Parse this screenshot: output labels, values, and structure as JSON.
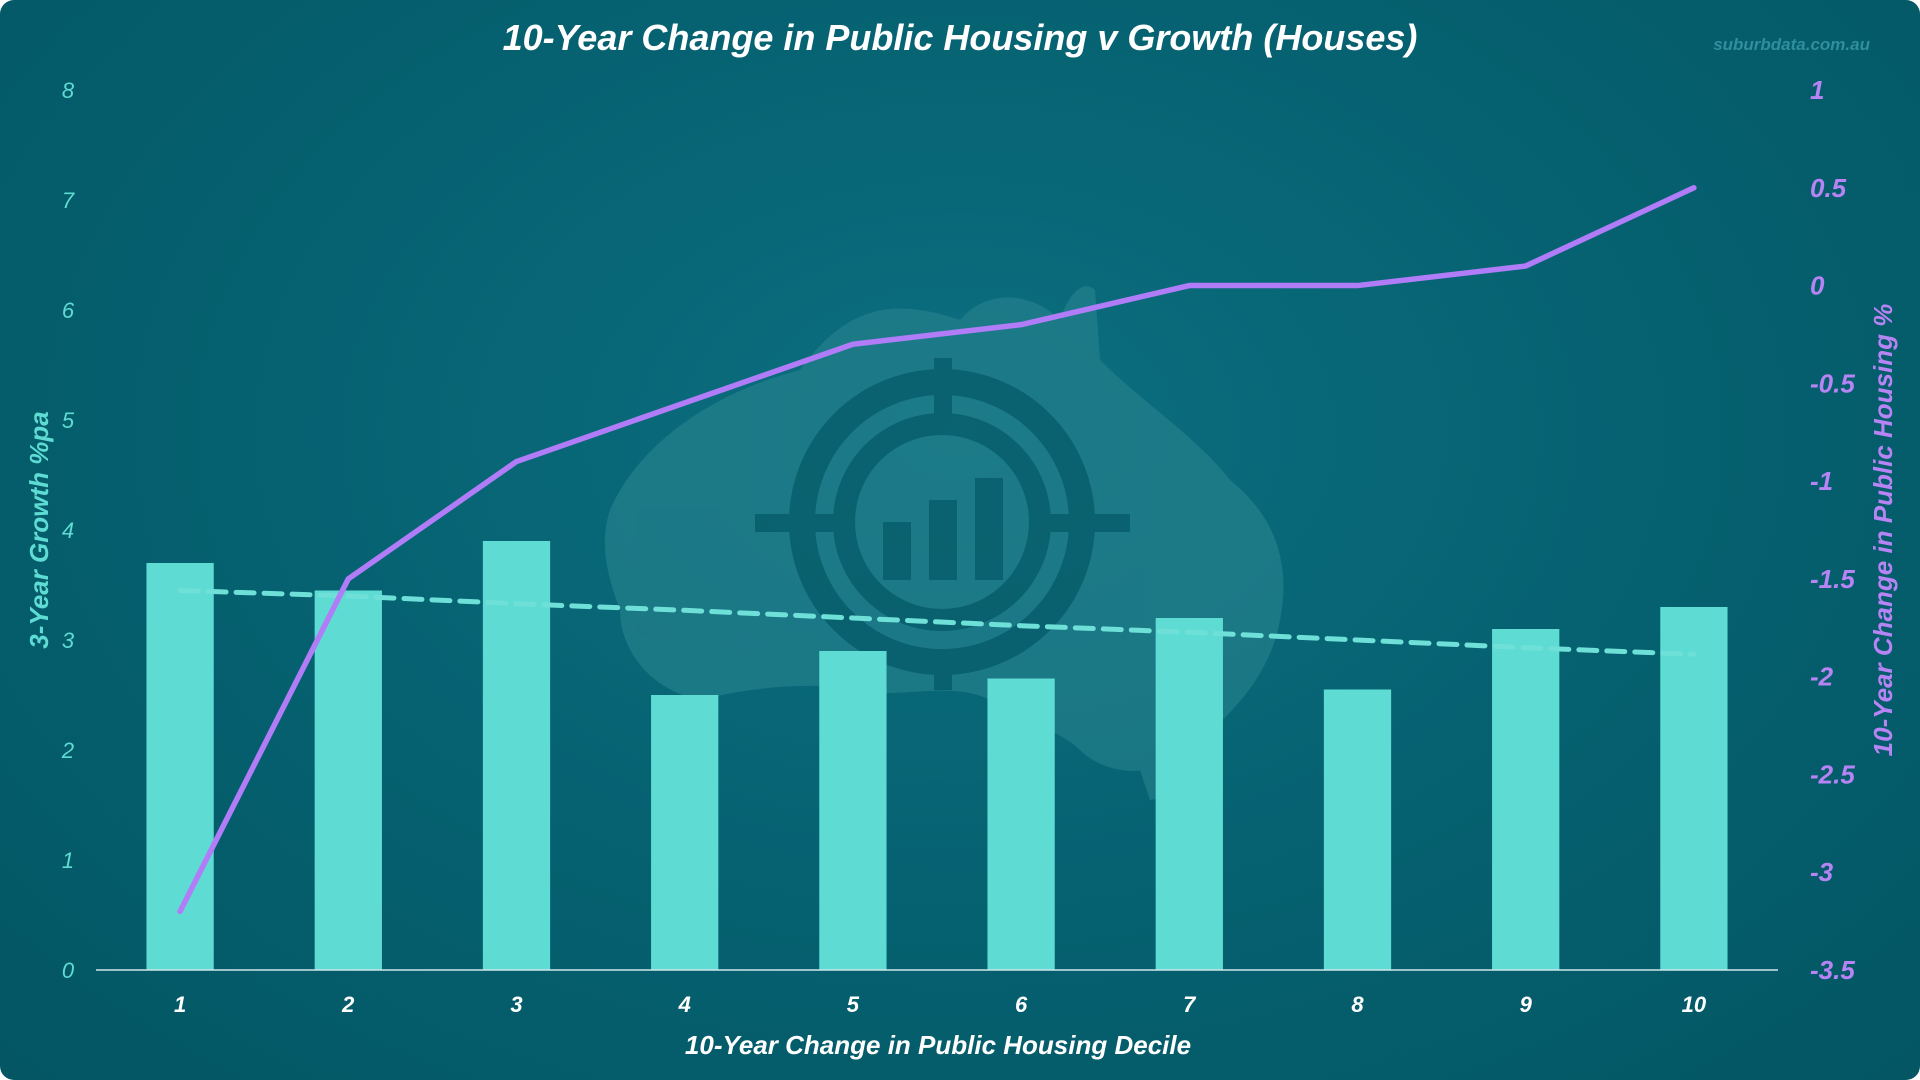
{
  "chart_data": {
    "type": "bar",
    "title": "10-Year Change in Public Housing v Growth (Houses)",
    "watermark": "suburbdata.com.au",
    "categories": [
      "1",
      "2",
      "3",
      "4",
      "5",
      "6",
      "7",
      "8",
      "9",
      "10"
    ],
    "xlabel": "10-Year Change in Public Housing Decile",
    "ylabel": "3-Year Growth %pa",
    "y2label": "10-Year Change in Public Housing %",
    "ylim": [
      0,
      8
    ],
    "y2lim": [
      -3.5,
      1
    ],
    "yticks": [
      "0",
      "1",
      "2",
      "3",
      "4",
      "5",
      "6",
      "7",
      "8"
    ],
    "y2ticks": [
      "-3.5",
      "-3",
      "-2.5",
      "-2",
      "-1.5",
      "-1",
      "-0.5",
      "0",
      "0.5",
      "1"
    ],
    "series": [
      {
        "type": "bar",
        "axis": "left",
        "values": [
          3.7,
          3.45,
          3.9,
          2.5,
          2.9,
          2.65,
          3.2,
          2.55,
          3.1,
          3.3
        ]
      },
      {
        "type": "line",
        "axis": "right",
        "values": [
          -3.2,
          -1.5,
          -0.9,
          -0.6,
          -0.3,
          -0.2,
          0.0,
          0.0,
          0.1,
          0.5
        ]
      },
      {
        "type": "trendline",
        "axis": "left",
        "style": "dashed",
        "values": [
          3.45,
          3.4,
          3.33,
          3.27,
          3.2,
          3.13,
          3.07,
          3.0,
          2.93,
          2.87
        ]
      }
    ],
    "grid": false,
    "legend": "none",
    "colors": {
      "background": "#05606f",
      "bars": "#5edcd3",
      "line": "#b07cf7",
      "trendline": "#6ee0d8",
      "title": "#ffffff",
      "left_axis": "#5edcd3",
      "right_axis": "#b784f5",
      "watermark": "#2f8f9c"
    }
  }
}
